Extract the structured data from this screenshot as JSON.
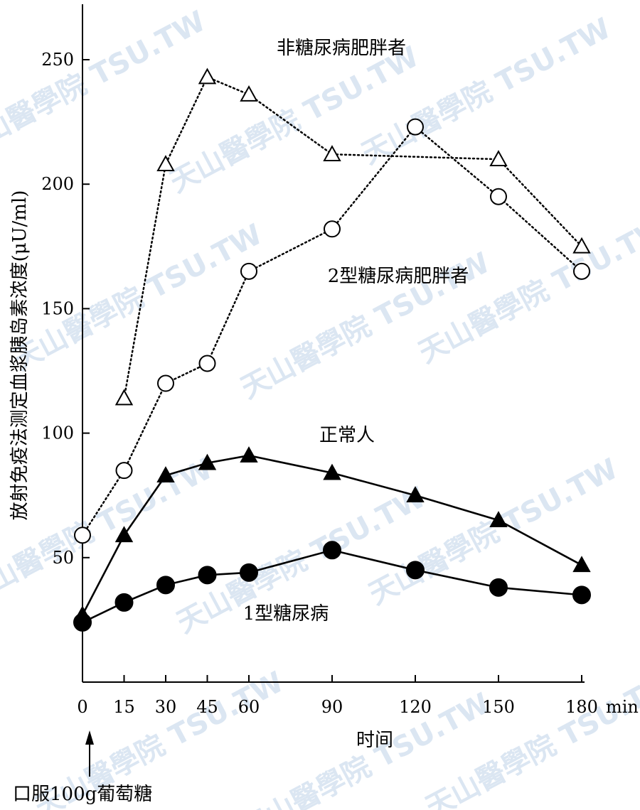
{
  "chart_data": {
    "type": "line",
    "title": "",
    "xlabel": "时间",
    "x_unit": "min",
    "ylabel": "放射免疫法测定血浆胰岛素浓度(μU/ml)",
    "xlim": [
      0,
      180
    ],
    "ylim": [
      0,
      250
    ],
    "x_ticks": [
      0,
      15,
      30,
      45,
      60,
      90,
      120,
      150,
      180
    ],
    "y_ticks": [
      50,
      100,
      150,
      200,
      250
    ],
    "grid": false,
    "annotation": "口服100g葡萄糖",
    "watermark": "天山醫學院 TSU.TW",
    "series": [
      {
        "name": "非糖尿病肥胖者",
        "marker": "open-triangle",
        "line_style": "dotted",
        "x": [
          15,
          30,
          45,
          60,
          90,
          150,
          180
        ],
        "y": [
          114,
          208,
          243,
          236,
          212,
          210,
          175
        ]
      },
      {
        "name": "2型糖尿病肥胖者",
        "marker": "open-circle",
        "line_style": "dotted",
        "x": [
          0,
          15,
          30,
          45,
          60,
          90,
          120,
          150,
          180
        ],
        "y": [
          59,
          85,
          120,
          128,
          165,
          182,
          223,
          195,
          165
        ]
      },
      {
        "name": "正常人",
        "marker": "filled-triangle",
        "line_style": "solid",
        "x": [
          0,
          15,
          30,
          45,
          60,
          90,
          120,
          150,
          180
        ],
        "y": [
          27,
          59,
          83,
          88,
          91,
          84,
          75,
          65,
          47
        ]
      },
      {
        "name": "1型糖尿病",
        "marker": "filled-circle",
        "line_style": "solid",
        "x": [
          0,
          15,
          30,
          45,
          60,
          90,
          120,
          150,
          180
        ],
        "y": [
          24,
          32,
          39,
          43,
          44,
          53,
          45,
          38,
          35
        ]
      }
    ]
  }
}
